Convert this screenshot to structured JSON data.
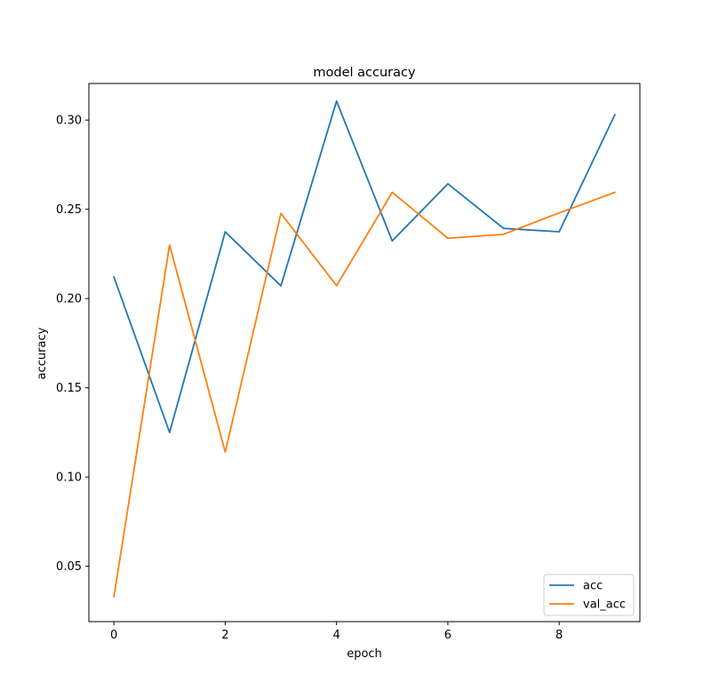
{
  "chart_data": {
    "type": "line",
    "title": "model accuracy",
    "xlabel": "epoch",
    "ylabel": "accuracy",
    "x": [
      0,
      1,
      2,
      3,
      4,
      5,
      6,
      7,
      8,
      9
    ],
    "xlim": [
      -0.45,
      9.45
    ],
    "ylim": [
      0.019,
      0.3205
    ],
    "xticks": [
      0,
      2,
      4,
      6,
      8
    ],
    "xtick_labels": [
      "0",
      "2",
      "4",
      "6",
      "8"
    ],
    "yticks": [
      0.05,
      0.1,
      0.15,
      0.2,
      0.25,
      0.3
    ],
    "ytick_labels": [
      "0.05",
      "0.10",
      "0.15",
      "0.20",
      "0.25",
      "0.30"
    ],
    "grid": false,
    "legend_position": "lower-right",
    "series": [
      {
        "name": "acc",
        "color": "#1f77b4",
        "values": [
          0.2121,
          0.125,
          0.2374,
          0.2071,
          0.3106,
          0.2323,
          0.2643,
          0.2393,
          0.2374,
          0.303
        ]
      },
      {
        "name": "val_acc",
        "color": "#ff7f0e",
        "values": [
          0.033,
          0.23,
          0.114,
          0.2477,
          0.2072,
          0.2595,
          0.2338,
          0.236,
          0.248,
          0.2595
        ]
      }
    ]
  }
}
